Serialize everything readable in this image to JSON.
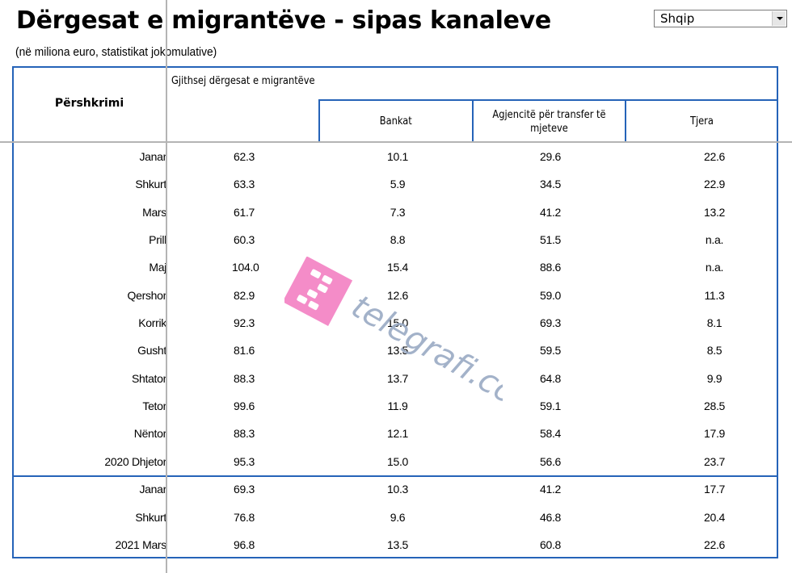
{
  "header": {
    "title": "Dërgesat e migrantëve - sipas kanaleve",
    "subtitle": "(në miliona euro, statistikat jokomulative)",
    "language_select": {
      "selected": "Shqip"
    }
  },
  "table": {
    "columns": {
      "description": "Përshkrimi",
      "total": "Gjithsej dërgesat e migrantëve",
      "banks": "Bankat",
      "agencies": "Agjencitë për transfer të mjeteve",
      "other": "Tjera"
    },
    "rows": [
      {
        "label": "Janar",
        "total": "62.3",
        "banks": "10.1",
        "agencies": "29.6",
        "other": "22.6"
      },
      {
        "label": "Shkurt",
        "total": "63.3",
        "banks": "5.9",
        "agencies": "34.5",
        "other": "22.9"
      },
      {
        "label": "Mars",
        "total": "61.7",
        "banks": "7.3",
        "agencies": "41.2",
        "other": "13.2"
      },
      {
        "label": "Prill",
        "total": "60.3",
        "banks": "8.8",
        "agencies": "51.5",
        "other": "n.a."
      },
      {
        "label": "Maj",
        "total": "104.0",
        "banks": "15.4",
        "agencies": "88.6",
        "other": "n.a."
      },
      {
        "label": "Qershor",
        "total": "82.9",
        "banks": "12.6",
        "agencies": "59.0",
        "other": "11.3"
      },
      {
        "label": "Korrik",
        "total": "92.3",
        "banks": "15.0",
        "agencies": "69.3",
        "other": "8.1"
      },
      {
        "label": "Gusht",
        "total": "81.6",
        "banks": "13.5",
        "agencies": "59.5",
        "other": "8.5"
      },
      {
        "label": "Shtator",
        "total": "88.3",
        "banks": "13.7",
        "agencies": "64.8",
        "other": "9.9"
      },
      {
        "label": "Tetor",
        "total": "99.6",
        "banks": "11.9",
        "agencies": "59.1",
        "other": "28.5"
      },
      {
        "label": "Nëntor",
        "total": "88.3",
        "banks": "12.1",
        "agencies": "58.4",
        "other": "17.9"
      },
      {
        "label": "2020 Dhjetor",
        "total": "95.3",
        "banks": "15.0",
        "agencies": "56.6",
        "other": "23.7"
      },
      {
        "label": "Janar",
        "total": "69.3",
        "banks": "10.3",
        "agencies": "41.2",
        "other": "17.7"
      },
      {
        "label": "Shkurt",
        "total": "76.8",
        "banks": "9.6",
        "agencies": "46.8",
        "other": "20.4"
      },
      {
        "label": "2021 Mars",
        "total": "96.8",
        "banks": "13.5",
        "agencies": "60.8",
        "other": "22.6"
      }
    ]
  },
  "watermark": {
    "text": "telegrafi.com",
    "logo_color": "#f48cc8",
    "text_color": "#9aaac4"
  },
  "colors": {
    "table_border": "#2563b8",
    "grid_line": "#b4b4b4"
  }
}
